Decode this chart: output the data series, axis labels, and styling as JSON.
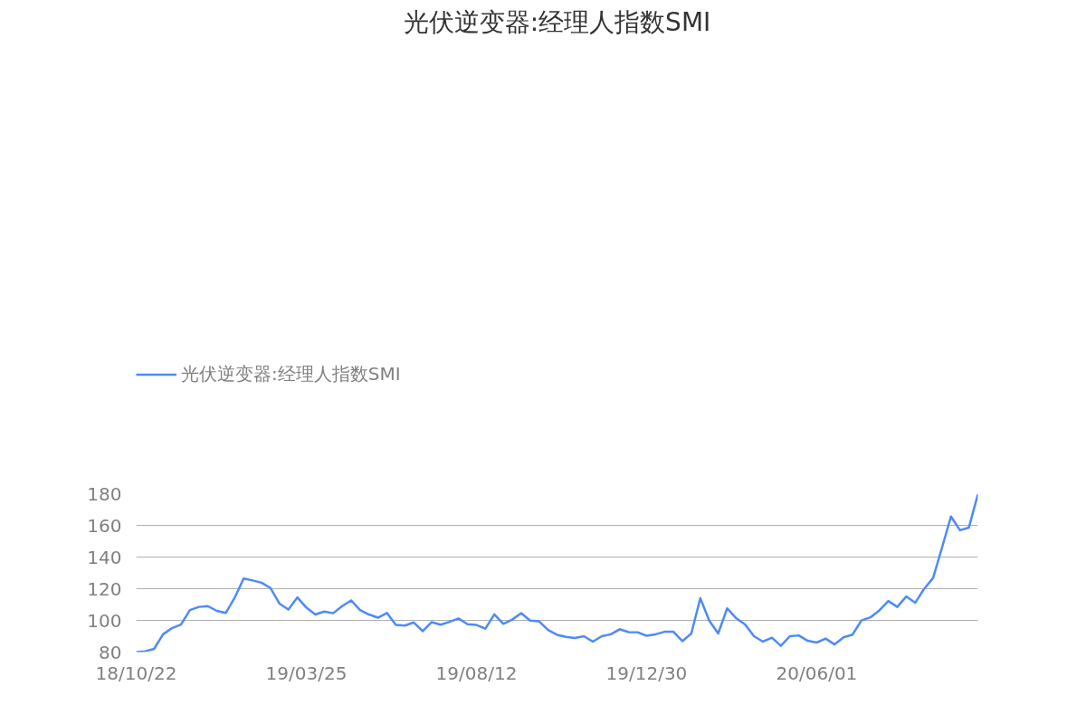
{
  "chart_data": {
    "type": "line",
    "title": "光伏逆变器:经理人指数SMI",
    "categories": [
      "18/10/22",
      null,
      null,
      null,
      null,
      null,
      null,
      null,
      null,
      null,
      null,
      null,
      null,
      null,
      null,
      null,
      null,
      null,
      null,
      "19/03/25",
      null,
      null,
      null,
      null,
      null,
      null,
      null,
      null,
      null,
      null,
      null,
      null,
      null,
      null,
      null,
      null,
      null,
      null,
      "19/08/12",
      null,
      null,
      null,
      null,
      null,
      null,
      null,
      null,
      null,
      null,
      null,
      null,
      null,
      null,
      null,
      null,
      null,
      null,
      "19/12/30",
      null,
      null,
      null,
      null,
      null,
      null,
      null,
      null,
      null,
      null,
      null,
      null,
      null,
      null,
      null,
      null,
      null,
      null,
      "20/06/01",
      null,
      null,
      null,
      null,
      null,
      null,
      null,
      null,
      null,
      null,
      null,
      null,
      null,
      null,
      null,
      null,
      null,
      null
    ],
    "series": [
      {
        "name": "光伏逆变器:经理人指数SMI",
        "color": "#4e8af6",
        "values": [
          80,
          80.5,
          82,
          91.2,
          95.1,
          97.4,
          106.5,
          108.5,
          109,
          106,
          104.7,
          114.3,
          126.4,
          125.2,
          123.8,
          120.4,
          110.6,
          106.9,
          114.5,
          108.1,
          103.7,
          105.6,
          104.5,
          109,
          112.6,
          106.5,
          103.7,
          101.7,
          104.7,
          97.1,
          96.7,
          98.7,
          93.2,
          98.9,
          97.3,
          99.1,
          101.2,
          97.6,
          97.1,
          94.8,
          103.8,
          97.8,
          100.5,
          104.6,
          99.9,
          99.4,
          93.9,
          90.9,
          89.6,
          88.9,
          90,
          86.6,
          90,
          91.2,
          94.4,
          92.6,
          92.5,
          90.3,
          91.2,
          92.8,
          92.8,
          86.9,
          91.7,
          114,
          99.9,
          91.7,
          107.6,
          101.4,
          97.4,
          90,
          86.6,
          89.1,
          83.9,
          90,
          90.5,
          87.1,
          86,
          88.5,
          84.8,
          89.3,
          91,
          99.9,
          101.9,
          106.3,
          112.2,
          108.5,
          115.1,
          111.1,
          119.9,
          126.8,
          146,
          165.6,
          156.9,
          158.6,
          179.5
        ]
      }
    ],
    "ylim": [
      80,
      180
    ],
    "yticks": [
      80,
      100,
      120,
      140,
      160,
      180
    ],
    "grid": "y",
    "legend": "top left",
    "marker": "none",
    "line_style": "solid"
  }
}
